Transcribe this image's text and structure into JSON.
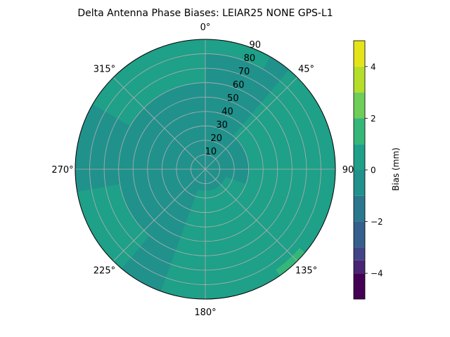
{
  "chart_data": {
    "type": "heatmap",
    "projection": "polar",
    "title": "Delta Antenna Phase Biases: LEIAR25         NONE GPS-L1",
    "angular_axis": {
      "zero_location": "top",
      "direction": "clockwise",
      "tick_labels": [
        "0°",
        "45°",
        "90",
        "135°",
        "180°",
        "225°",
        "270°",
        "315°"
      ],
      "tick_values_deg": [
        0,
        45,
        90,
        135,
        180,
        225,
        270,
        315
      ]
    },
    "radial_axis": {
      "range": [
        0,
        90
      ],
      "tick_values": [
        10,
        20,
        30,
        40,
        50,
        60,
        70,
        80,
        90
      ],
      "tick_labels": [
        "10",
        "20",
        "30",
        "40",
        "50",
        "60",
        "70",
        "80",
        "90"
      ],
      "label_angle_deg": 22.5
    },
    "grid": true,
    "colorbar": {
      "label": "Bias (mm)",
      "range": [
        -5,
        5
      ],
      "levels": [
        -5,
        -4.5,
        -4,
        -3.5,
        -3,
        -2.5,
        -2,
        -1.5,
        -1,
        -0.5,
        0,
        0.5,
        1,
        1.5,
        2,
        2.5,
        3,
        3.5,
        4,
        4.5,
        5
      ],
      "level_bands": [
        {
          "from": -5,
          "to": -4,
          "color": "#440154"
        },
        {
          "from": -4,
          "to": -3.5,
          "color": "#482475"
        },
        {
          "from": -3.5,
          "to": -3,
          "color": "#414487"
        },
        {
          "from": -3,
          "to": -2,
          "color": "#355f8d"
        },
        {
          "from": -2,
          "to": -1,
          "color": "#2a788e"
        },
        {
          "from": -1,
          "to": 0,
          "color": "#21918c"
        },
        {
          "from": 0,
          "to": 1,
          "color": "#1fa088"
        },
        {
          "from": 1,
          "to": 2,
          "color": "#35b779"
        },
        {
          "from": 2,
          "to": 3,
          "color": "#6ece58"
        },
        {
          "from": 3,
          "to": 4,
          "color": "#b5de2b"
        },
        {
          "from": 4,
          "to": 5,
          "color": "#e5e419"
        }
      ],
      "tick_values": [
        -4,
        -2,
        0,
        2,
        4
      ],
      "tick_labels": [
        "−4",
        "−2",
        "0",
        "2",
        "4"
      ]
    },
    "field_colors": {
      "dark_band": "#21918c",
      "light_band": "#1fa088",
      "edge_patch": "#35b779"
    },
    "regions": [
      {
        "band": "light",
        "sector_deg": [
          300,
          360
        ],
        "elev_deg": [
          60,
          90
        ]
      },
      {
        "band": "light",
        "sector_deg": [
          0,
          30
        ],
        "elev_deg": [
          80,
          90
        ]
      },
      {
        "band": "light",
        "sector_deg": [
          40,
          110
        ],
        "elev_deg": [
          30,
          90
        ]
      },
      {
        "band": "light",
        "sector_deg": [
          110,
          200
        ],
        "elev_deg": [
          15,
          90
        ]
      },
      {
        "band": "light",
        "sector_deg": [
          220,
          260
        ],
        "elev_deg": [
          60,
          90
        ]
      },
      {
        "band": "edge",
        "sector_deg": [
          130,
          145
        ],
        "elev_deg": [
          85,
          90
        ]
      }
    ]
  }
}
